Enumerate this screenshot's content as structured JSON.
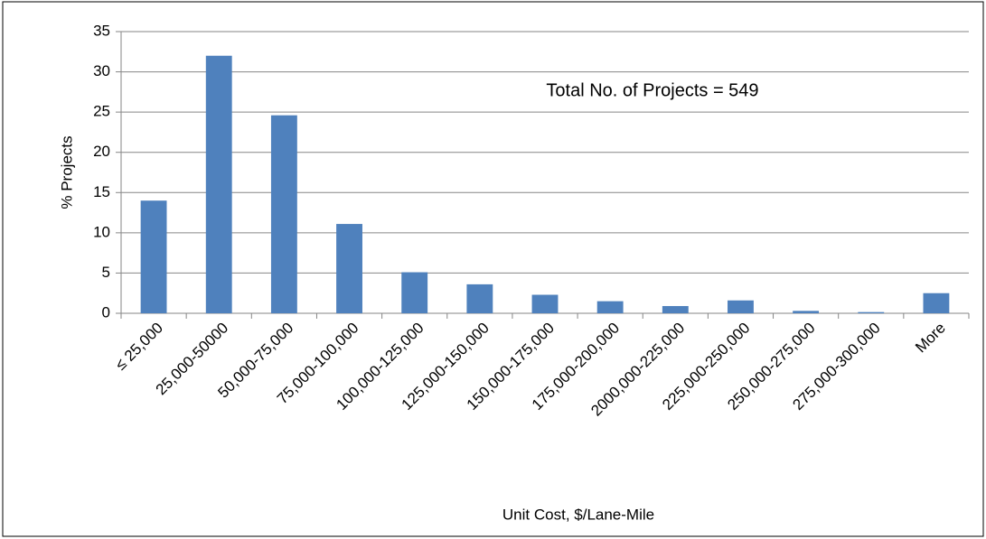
{
  "chart_data": {
    "type": "bar",
    "categories": [
      "≤ 25,000",
      "25,000-50000",
      "50,000-75,000",
      "75,000-100,000",
      "100,000-125,000",
      "125,000-150,000",
      "150,000-175,000",
      "175,000-200,000",
      "2000,000-225,000",
      "225,000-250,000",
      "250,000-275,000",
      "275,000-300,000",
      "More"
    ],
    "values": [
      14,
      32,
      24.6,
      11.1,
      5.1,
      3.6,
      2.3,
      1.5,
      0.9,
      1.6,
      0.3,
      0.15,
      2.5
    ],
    "color": "#4f81bd",
    "ylim": [
      0,
      35
    ],
    "yticks": [
      0,
      5,
      10,
      15,
      20,
      25,
      30,
      35
    ],
    "grid": true,
    "y_label": "% Projects",
    "x_label": "Unit Cost,  $/Lane-Mile",
    "annotation": "Total No. of Projects = 549"
  }
}
